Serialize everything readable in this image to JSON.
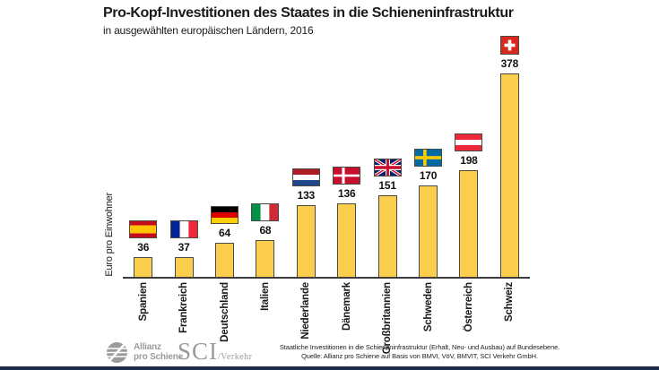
{
  "header": {
    "title": "Pro-Kopf-Investitionen des Staates in die Schieneninfrastruktur",
    "subtitle": "in ausgewählten europäischen Ländern, 2016"
  },
  "chart_data": {
    "type": "bar",
    "title": "Pro-Kopf-Investitionen des Staates in die Schieneninfrastruktur",
    "subtitle": "in ausgewählten europäischen Ländern, 2016",
    "categories": [
      "Spanien",
      "Frankreich",
      "Deutschland",
      "Italien",
      "Niederlande",
      "Dänemark",
      "Großbritannien",
      "Schweden",
      "Österreich",
      "Schweiz"
    ],
    "values": [
      36,
      37,
      64,
      68,
      133,
      136,
      151,
      170,
      198,
      378
    ],
    "flags": [
      "es",
      "fr",
      "de",
      "it",
      "nl",
      "dk",
      "gb",
      "se",
      "at",
      "ch"
    ],
    "xlabel": "",
    "ylabel": "Euro pro Einwohner",
    "ylim": [
      0,
      400
    ],
    "grid": false,
    "legend": false,
    "value_labels": true,
    "bar_color": "#FBCE4D",
    "bar_border_color": "#4A4A40",
    "axis_color": "#3D3D3D"
  },
  "footer": {
    "logo_allianz": {
      "line1": "Allianz",
      "line2": "pro Schiene"
    },
    "logo_sci": {
      "main": "SCI",
      "suffix": "/Verkehr"
    },
    "note_line1": "Staatliche Investitionen in die Schieneninfrastruktur (Erhalt, Neu- und Ausbau) auf Bundesebene.",
    "note_line2": "Quelle: Allianz pro Schiene auf Basis von BMVI, VöV, BMVIT, SCI Verkehr GmbH."
  },
  "colors": {
    "background": "#FFFFFF",
    "bar_fill": "#FBCE4D",
    "footer_gray": "#9B9B9B",
    "bottom_accent": "#1C2B4A"
  }
}
